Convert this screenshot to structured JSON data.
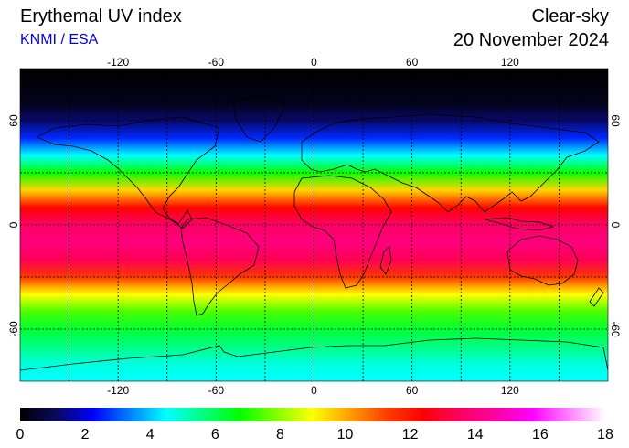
{
  "header": {
    "title": "Erythemal UV index",
    "source": "KNMI / ESA",
    "condition": "Clear-sky",
    "date": "20 November 2024"
  },
  "map": {
    "lon_ticks": [
      "-120",
      "-60",
      "0",
      "60",
      "120"
    ],
    "lon_values": [
      -120,
      -60,
      0,
      60,
      120
    ],
    "lat_ticks": [
      "60",
      "0",
      "-60"
    ],
    "lat_values": [
      60,
      0,
      -60
    ],
    "lon_range": [
      -180,
      180
    ],
    "lat_range": [
      -90,
      90
    ],
    "grid": true,
    "grid_spacing_deg": 30
  },
  "colorbar": {
    "min": 0,
    "max": 18,
    "ticks": [
      "0",
      "2",
      "4",
      "6",
      "8",
      "10",
      "12",
      "14",
      "16",
      "18"
    ],
    "colors": [
      "#000000",
      "#0a0a60",
      "#0000ff",
      "#0080ff",
      "#00ffff",
      "#00ff80",
      "#00ff00",
      "#80ff00",
      "#ffff00",
      "#ffa000",
      "#ff4000",
      "#ff0000",
      "#ff0060",
      "#ff00a0",
      "#ff00ff",
      "#ff80ff",
      "#ffffff"
    ]
  },
  "chart_data": {
    "type": "heatmap",
    "title": "Erythemal UV index",
    "xlabel": "",
    "ylabel": "",
    "xlim": [
      -180,
      180
    ],
    "ylim": [
      -90,
      90
    ],
    "zlim": [
      0,
      18
    ],
    "latitude_profile": {
      "lat": [
        90,
        70,
        60,
        50,
        40,
        30,
        20,
        10,
        0,
        -10,
        -20,
        -30,
        -40,
        -50,
        -60,
        -70,
        -80,
        -90
      ],
      "uv": [
        0,
        0.3,
        1.2,
        2.6,
        4.5,
        6.8,
        9.5,
        12.3,
        13.6,
        14.0,
        13.4,
        11.4,
        9.0,
        7.4,
        6.3,
        5.6,
        4.8,
        4.5
      ]
    }
  }
}
